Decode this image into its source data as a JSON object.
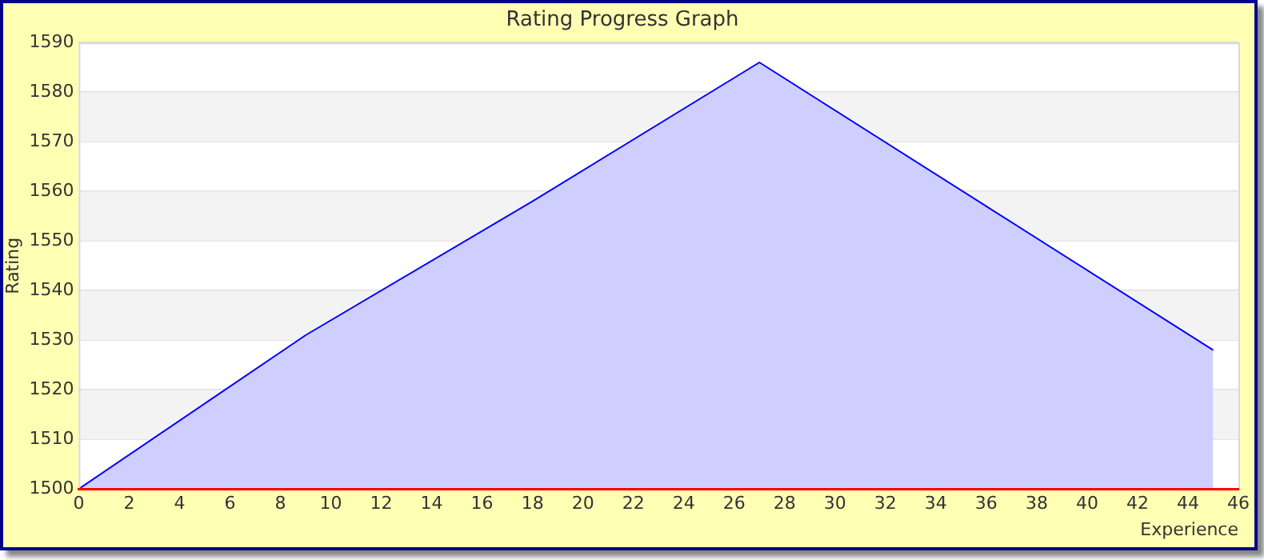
{
  "chart_data": {
    "type": "area",
    "title": "Rating Progress Graph",
    "xlabel": "Experience",
    "ylabel": "Rating",
    "x": [
      0,
      9,
      18,
      27,
      36,
      45
    ],
    "series": [
      {
        "color": "#0000ff",
        "values": [
          1500,
          1531,
          1558,
          1586,
          1557,
          1528
        ]
      }
    ],
    "xlim": [
      0,
      46
    ],
    "xticks": [
      0,
      2,
      4,
      6,
      8,
      10,
      12,
      14,
      16,
      18,
      20,
      22,
      24,
      26,
      28,
      30,
      32,
      34,
      36,
      38,
      40,
      42,
      44,
      46
    ],
    "ylim": [
      1500,
      1590
    ],
    "yticks": [
      1500,
      1510,
      1520,
      1530,
      1540,
      1550,
      1560,
      1570,
      1580,
      1590
    ],
    "grid": "y",
    "legend": false,
    "marker": "none",
    "line_style": "solid"
  }
}
